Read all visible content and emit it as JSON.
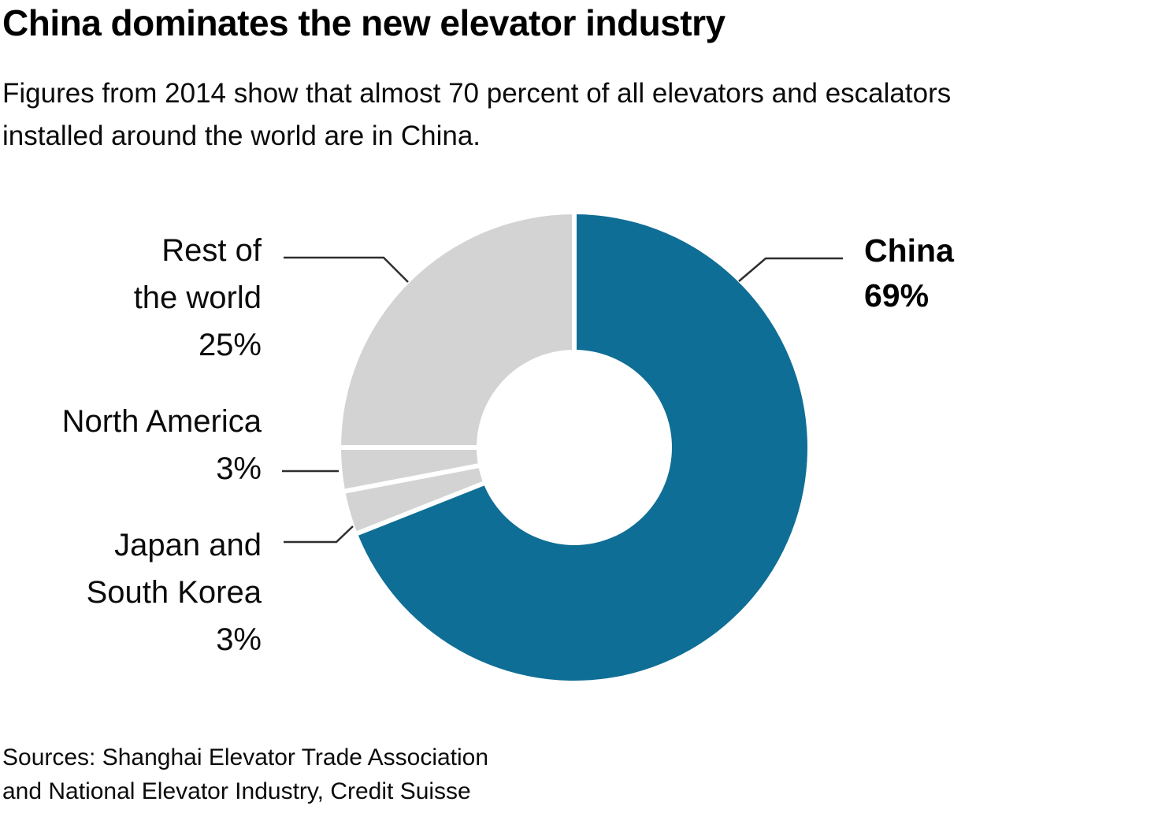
{
  "header": {
    "title": "China dominates the new elevator industry",
    "subtitle": "Figures from 2014 show that almost 70 percent of all elevators and escalators\ninstalled around the world are in China."
  },
  "chart_data": {
    "type": "pie",
    "subtype": "donut",
    "title": "China dominates the new elevator industry",
    "categories": [
      "China",
      "Japan and South Korea",
      "North America",
      "Rest of the world"
    ],
    "values": [
      69,
      3,
      3,
      25
    ],
    "unit": "%",
    "start_angle_deg": 0,
    "direction": "clockwise",
    "inner_radius_ratio": 0.42,
    "segment_colors": [
      "#0f6e95",
      "#d3d3d3",
      "#d3d3d3",
      "#d3d3d3"
    ],
    "accent_color": "#0f6e95",
    "muted_color": "#d3d3d3",
    "gap_color": "#ffffff",
    "legend_position": "callouts",
    "callouts": {
      "china": {
        "label": "China\n69%"
      },
      "rest_of_world": {
        "label": "Rest of\nthe world\n25%"
      },
      "north_america": {
        "label": "North America\n3%"
      },
      "japan_south_korea": {
        "label": "Japan and\nSouth Korea\n3%"
      }
    }
  },
  "footer": {
    "sources": "Sources: Shanghai Elevator Trade Association\nand National Elevator Industry, Credit Suisse"
  }
}
